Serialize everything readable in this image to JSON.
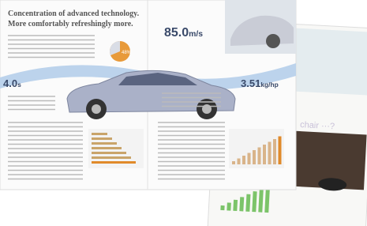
{
  "title_line1": "Concentration of advanced technology.",
  "title_line2": "More comfortably refreshingly more.",
  "pie_label": "48%",
  "stats": [
    {
      "value": "85.0",
      "unit": "m/s"
    },
    {
      "value": "4.0",
      "unit": "s"
    },
    {
      "value": "3.51",
      "unit": "kg/hp"
    }
  ],
  "right_heading": "chair ···?"
}
